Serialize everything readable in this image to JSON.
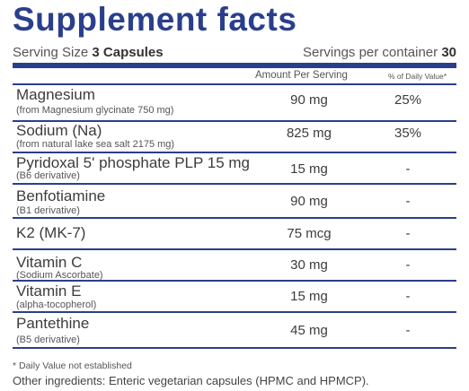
{
  "title": "Supplement facts",
  "serving": {
    "size_label": "Serving Size",
    "size_value": "3 Capsules",
    "per_container_label": "Servings per container",
    "per_container_value": "30"
  },
  "header": {
    "amount": "Amount Per Serving",
    "daily_value": "% of Daily  Value*"
  },
  "rows": [
    {
      "name": "Magnesium",
      "sub": "(from Magnesium glycinate 750 mg)",
      "amount": "90 mg",
      "dv": "25%"
    },
    {
      "name": "Sodium (Na)",
      "sub": "(from natural lake sea salt 2175 mg)",
      "amount": "825 mg",
      "dv": "35%"
    },
    {
      "name": "Pyridoxal 5' phosphate PLP 15 mg",
      "sub": "(B6 derivative)",
      "amount": "15 mg",
      "dv": "-"
    },
    {
      "name": "Benfotiamine",
      "sub": "(B1 derivative)",
      "amount": "90 mg",
      "dv": "-"
    },
    {
      "name": "K2 (MK-7)",
      "sub": "",
      "amount": "75 mcg",
      "dv": "-"
    },
    {
      "name": "Vitamin C",
      "sub": "(Sodium Ascorbate)",
      "amount": "30 mg",
      "dv": "-"
    },
    {
      "name": "Vitamin E",
      "sub": "(alpha-tocopherol)",
      "amount": "15 mg",
      "dv": "-"
    },
    {
      "name": "Pantethine",
      "sub": "(B5 derivative)",
      "amount": "45 mg",
      "dv": "-"
    }
  ],
  "footnote": "* Daily Value not established",
  "other_ingredients": "Other ingredients: Enteric vegetarian capsules (HPMC and HPMCP)."
}
